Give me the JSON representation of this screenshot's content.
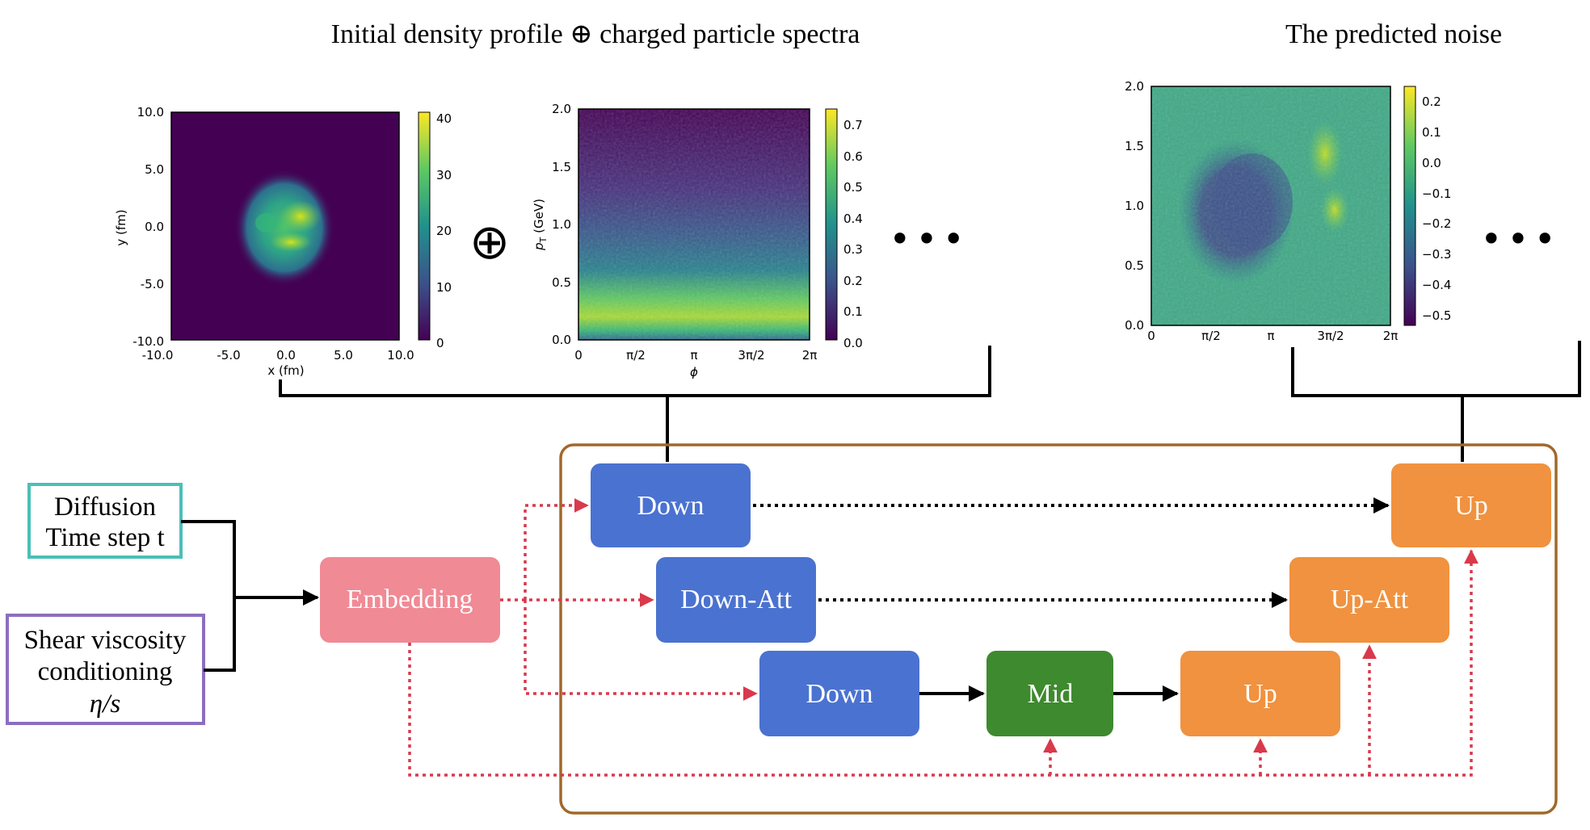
{
  "titles": {
    "input": "Initial density profile ⊕ charged particle spectra",
    "output": "The predicted noise"
  },
  "density_plot": {
    "xlabel": "x (fm)",
    "ylabel": "y (fm)",
    "xticks": [
      "-10.0",
      "-5.0",
      "0.0",
      "5.0",
      "10.0"
    ],
    "yticks": [
      "10.0",
      "5.0",
      "0.0",
      "-5.0",
      "-10.0"
    ],
    "colorbar_ticks": [
      "40",
      "30",
      "20",
      "10",
      "0"
    ],
    "colormap": "viridis"
  },
  "spectra_plot": {
    "xlabel": "ϕ",
    "ylabel": "p_T (GeV)",
    "ylabel_main": "p",
    "ylabel_sub": "T",
    "ylabel_unit": " (GeV)",
    "xticks": [
      "0",
      "π/2",
      "π",
      "3π/2",
      "2π"
    ],
    "yticks": [
      "2.0",
      "1.5",
      "1.0",
      "0.5",
      "0.0"
    ],
    "colorbar_ticks": [
      "0.7",
      "0.6",
      "0.5",
      "0.4",
      "0.3",
      "0.2",
      "0.1",
      "0.0"
    ],
    "colormap": "viridis"
  },
  "noise_plot": {
    "xticks": [
      "0",
      "π/2",
      "π",
      "3π/2",
      "2π"
    ],
    "yticks": [
      "2.0",
      "1.5",
      "1.0",
      "0.5",
      "0.0"
    ],
    "colorbar_ticks": [
      "0.2",
      "0.1",
      "0.0",
      "−0.1",
      "−0.2",
      "−0.3",
      "−0.4",
      "−0.5"
    ],
    "colormap": "viridis"
  },
  "symbols": {
    "oplus": "⊕",
    "ellipsis": "•••"
  },
  "inputs": {
    "diffusion": [
      "Diffusion",
      "Time step t"
    ],
    "shear": [
      "Shear viscosity",
      "conditioning"
    ],
    "shear_symbol": "η/s"
  },
  "blocks": {
    "embedding": "Embedding",
    "down1": "Down",
    "down_att": "Down-Att",
    "down2": "Down",
    "mid": "Mid",
    "up2": "Up",
    "up_att": "Up-Att",
    "up1": "Up"
  },
  "colors": {
    "down": "#4a72d0",
    "up": "#f0923f",
    "mid": "#3e8a2e",
    "embedding": "#f08a95",
    "frame": "#a0682a",
    "diffusion_border": "#4bbfb7",
    "shear_border": "#8c6ec0",
    "conditioning_arrow": "#d9394b"
  }
}
